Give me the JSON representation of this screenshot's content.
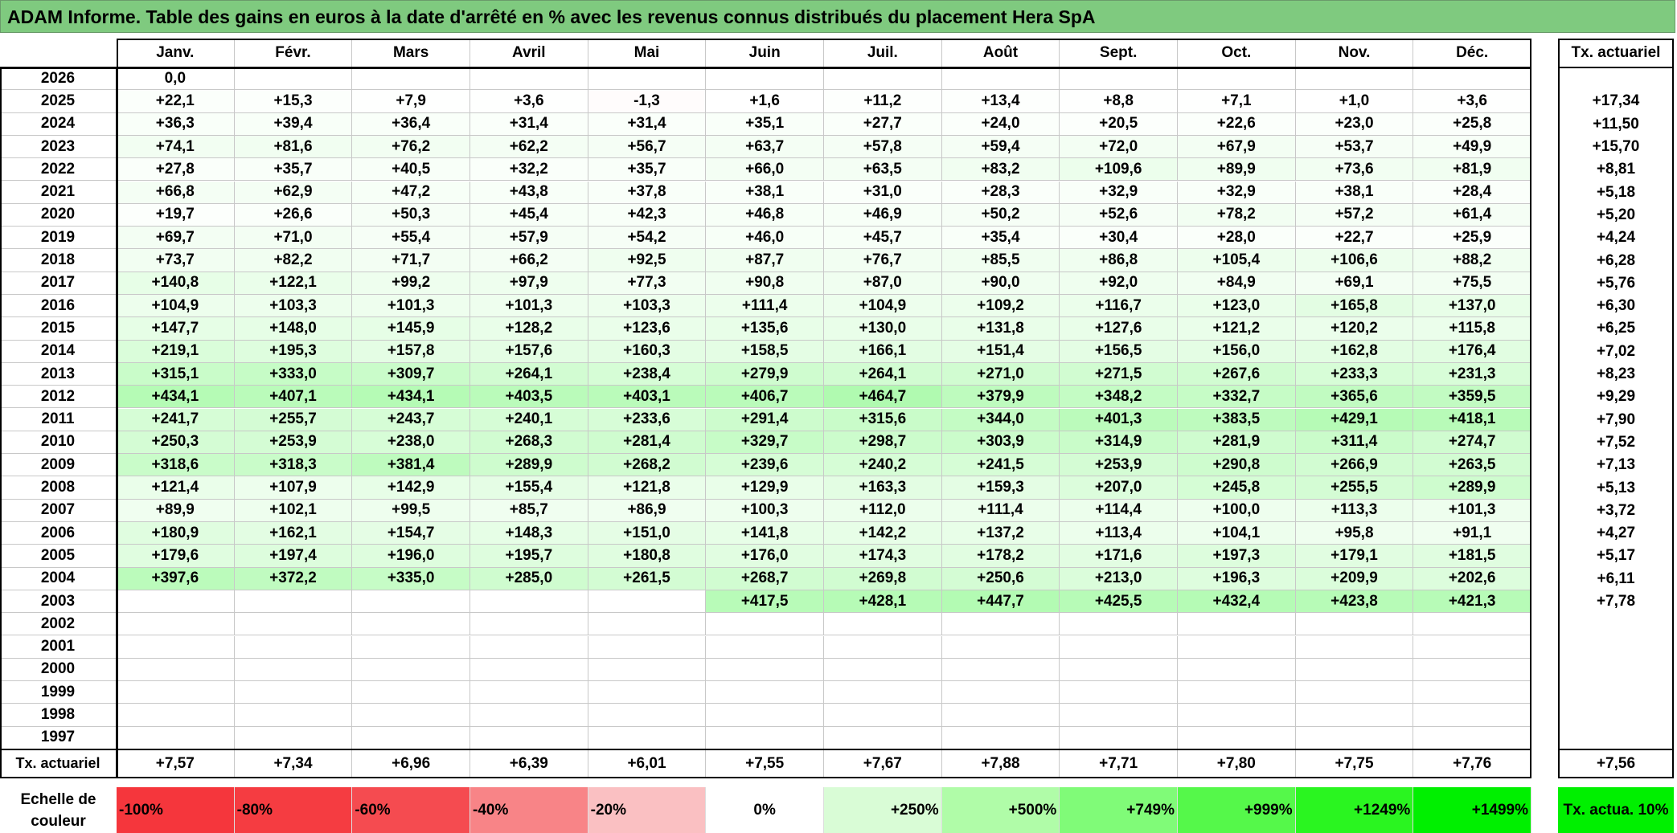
{
  "title": "ADAM Informe. Table des gains en euros à la date d'arrêté en % avec les revenus connus distribués du placement Hera SpA",
  "months": [
    "Janv.",
    "Févr.",
    "Mars",
    "Avril",
    "Mai",
    "Juin",
    "Juil.",
    "Août",
    "Sept.",
    "Oct.",
    "Nov.",
    "Déc."
  ],
  "rate_header": "Tx. actuariel",
  "rows": [
    {
      "year": "2026",
      "values": [
        "0,0",
        "",
        "",
        "",
        "",
        "",
        "",
        "",
        "",
        "",
        "",
        ""
      ],
      "rate": ""
    },
    {
      "year": "2025",
      "values": [
        "+22,1",
        "+15,3",
        "+7,9",
        "+3,6",
        "-1,3",
        "+1,6",
        "+11,2",
        "+13,4",
        "+8,8",
        "+7,1",
        "+1,0",
        "+3,6"
      ],
      "rate": "+17,34"
    },
    {
      "year": "2024",
      "values": [
        "+36,3",
        "+39,4",
        "+36,4",
        "+31,4",
        "+31,4",
        "+35,1",
        "+27,7",
        "+24,0",
        "+20,5",
        "+22,6",
        "+23,0",
        "+25,8"
      ],
      "rate": "+11,50"
    },
    {
      "year": "2023",
      "values": [
        "+74,1",
        "+81,6",
        "+76,2",
        "+62,2",
        "+56,7",
        "+63,7",
        "+57,8",
        "+59,4",
        "+72,0",
        "+67,9",
        "+53,7",
        "+49,9"
      ],
      "rate": "+15,70"
    },
    {
      "year": "2022",
      "values": [
        "+27,8",
        "+35,7",
        "+40,5",
        "+32,2",
        "+35,7",
        "+66,0",
        "+63,5",
        "+83,2",
        "+109,6",
        "+89,9",
        "+73,6",
        "+81,9"
      ],
      "rate": "+8,81"
    },
    {
      "year": "2021",
      "values": [
        "+66,8",
        "+62,9",
        "+47,2",
        "+43,8",
        "+37,8",
        "+38,1",
        "+31,0",
        "+28,3",
        "+32,9",
        "+32,9",
        "+38,1",
        "+28,4"
      ],
      "rate": "+5,18"
    },
    {
      "year": "2020",
      "values": [
        "+19,7",
        "+26,6",
        "+50,3",
        "+45,4",
        "+42,3",
        "+46,8",
        "+46,9",
        "+50,2",
        "+52,6",
        "+78,2",
        "+57,2",
        "+61,4"
      ],
      "rate": "+5,20"
    },
    {
      "year": "2019",
      "values": [
        "+69,7",
        "+71,0",
        "+55,4",
        "+57,9",
        "+54,2",
        "+46,0",
        "+45,7",
        "+35,4",
        "+30,4",
        "+28,0",
        "+22,7",
        "+25,9"
      ],
      "rate": "+4,24"
    },
    {
      "year": "2018",
      "values": [
        "+73,7",
        "+82,2",
        "+71,7",
        "+66,2",
        "+92,5",
        "+87,7",
        "+76,7",
        "+85,5",
        "+86,8",
        "+105,4",
        "+106,6",
        "+88,2"
      ],
      "rate": "+6,28"
    },
    {
      "year": "2017",
      "values": [
        "+140,8",
        "+122,1",
        "+99,2",
        "+97,9",
        "+77,3",
        "+90,8",
        "+87,0",
        "+90,0",
        "+92,0",
        "+84,9",
        "+69,1",
        "+75,5"
      ],
      "rate": "+5,76"
    },
    {
      "year": "2016",
      "values": [
        "+104,9",
        "+103,3",
        "+101,3",
        "+101,3",
        "+103,3",
        "+111,4",
        "+104,9",
        "+109,2",
        "+116,7",
        "+123,0",
        "+165,8",
        "+137,0"
      ],
      "rate": "+6,30"
    },
    {
      "year": "2015",
      "values": [
        "+147,7",
        "+148,0",
        "+145,9",
        "+128,2",
        "+123,6",
        "+135,6",
        "+130,0",
        "+131,8",
        "+127,6",
        "+121,2",
        "+120,2",
        "+115,8"
      ],
      "rate": "+6,25"
    },
    {
      "year": "2014",
      "values": [
        "+219,1",
        "+195,3",
        "+157,8",
        "+157,6",
        "+160,3",
        "+158,5",
        "+166,1",
        "+151,4",
        "+156,5",
        "+156,0",
        "+162,8",
        "+176,4"
      ],
      "rate": "+7,02"
    },
    {
      "year": "2013",
      "values": [
        "+315,1",
        "+333,0",
        "+309,7",
        "+264,1",
        "+238,4",
        "+279,9",
        "+264,1",
        "+271,0",
        "+271,5",
        "+267,6",
        "+233,3",
        "+231,3"
      ],
      "rate": "+8,23"
    },
    {
      "year": "2012",
      "values": [
        "+434,1",
        "+407,1",
        "+434,1",
        "+403,5",
        "+403,1",
        "+406,7",
        "+464,7",
        "+379,9",
        "+348,2",
        "+332,7",
        "+365,6",
        "+359,5"
      ],
      "rate": "+9,29"
    },
    {
      "year": "2011",
      "values": [
        "+241,7",
        "+255,7",
        "+243,7",
        "+240,1",
        "+233,6",
        "+291,4",
        "+315,6",
        "+344,0",
        "+401,3",
        "+383,5",
        "+429,1",
        "+418,1"
      ],
      "rate": "+7,90"
    },
    {
      "year": "2010",
      "values": [
        "+250,3",
        "+253,9",
        "+238,0",
        "+268,3",
        "+281,4",
        "+329,7",
        "+298,7",
        "+303,9",
        "+314,9",
        "+281,9",
        "+311,4",
        "+274,7"
      ],
      "rate": "+7,52"
    },
    {
      "year": "2009",
      "values": [
        "+318,6",
        "+318,3",
        "+381,4",
        "+289,9",
        "+268,2",
        "+239,6",
        "+240,2",
        "+241,5",
        "+253,9",
        "+290,8",
        "+266,9",
        "+263,5"
      ],
      "rate": "+7,13"
    },
    {
      "year": "2008",
      "values": [
        "+121,4",
        "+107,9",
        "+142,9",
        "+155,4",
        "+121,8",
        "+129,9",
        "+163,3",
        "+159,3",
        "+207,0",
        "+245,8",
        "+255,5",
        "+289,9"
      ],
      "rate": "+5,13"
    },
    {
      "year": "2007",
      "values": [
        "+89,9",
        "+102,1",
        "+99,5",
        "+85,7",
        "+86,9",
        "+100,3",
        "+112,0",
        "+111,4",
        "+114,4",
        "+100,0",
        "+113,3",
        "+101,3"
      ],
      "rate": "+3,72"
    },
    {
      "year": "2006",
      "values": [
        "+180,9",
        "+162,1",
        "+154,7",
        "+148,3",
        "+151,0",
        "+141,8",
        "+142,2",
        "+137,2",
        "+113,4",
        "+104,1",
        "+95,8",
        "+91,1"
      ],
      "rate": "+4,27"
    },
    {
      "year": "2005",
      "values": [
        "+179,6",
        "+197,4",
        "+196,0",
        "+195,7",
        "+180,8",
        "+176,0",
        "+174,3",
        "+178,2",
        "+171,6",
        "+197,3",
        "+179,1",
        "+181,5"
      ],
      "rate": "+5,17"
    },
    {
      "year": "2004",
      "values": [
        "+397,6",
        "+372,2",
        "+335,0",
        "+285,0",
        "+261,5",
        "+268,7",
        "+269,8",
        "+250,6",
        "+213,0",
        "+196,3",
        "+209,9",
        "+202,6"
      ],
      "rate": "+6,11"
    },
    {
      "year": "2003",
      "values": [
        "",
        "",
        "",
        "",
        "",
        "+417,5",
        "+428,1",
        "+447,7",
        "+425,5",
        "+432,4",
        "+423,8",
        "+421,3"
      ],
      "rate": "+7,78"
    },
    {
      "year": "2002",
      "values": [
        "",
        "",
        "",
        "",
        "",
        "",
        "",
        "",
        "",
        "",
        "",
        ""
      ],
      "rate": ""
    },
    {
      "year": "2001",
      "values": [
        "",
        "",
        "",
        "",
        "",
        "",
        "",
        "",
        "",
        "",
        "",
        ""
      ],
      "rate": ""
    },
    {
      "year": "2000",
      "values": [
        "",
        "",
        "",
        "",
        "",
        "",
        "",
        "",
        "",
        "",
        "",
        ""
      ],
      "rate": ""
    },
    {
      "year": "1999",
      "values": [
        "",
        "",
        "",
        "",
        "",
        "",
        "",
        "",
        "",
        "",
        "",
        ""
      ],
      "rate": ""
    },
    {
      "year": "1998",
      "values": [
        "",
        "",
        "",
        "",
        "",
        "",
        "",
        "",
        "",
        "",
        "",
        ""
      ],
      "rate": ""
    },
    {
      "year": "1997",
      "values": [
        "",
        "",
        "",
        "",
        "",
        "",
        "",
        "",
        "",
        "",
        "",
        ""
      ],
      "rate": ""
    }
  ],
  "footer": {
    "label": "Tx. actuariel",
    "values": [
      "+7,57",
      "+7,34",
      "+6,96",
      "+6,39",
      "+6,01",
      "+7,55",
      "+7,67",
      "+7,88",
      "+7,71",
      "+7,80",
      "+7,75",
      "+7,76"
    ],
    "rate": "+7,56"
  },
  "legend": {
    "label": "Echelle de couleur",
    "items": [
      {
        "label": "-100%",
        "color": "#f5363c"
      },
      {
        "label": "-80%",
        "color": "#f53c41"
      },
      {
        "label": "-60%",
        "color": "#f54b50"
      },
      {
        "label": "-40%",
        "color": "#f88487"
      },
      {
        "label": "-20%",
        "color": "#fac0c2"
      },
      {
        "label": "0%",
        "color": "#ffffff"
      },
      {
        "label": "+250%",
        "color": "#d9fcd6"
      },
      {
        "label": "+500%",
        "color": "#b0fca8"
      },
      {
        "label": "+749%",
        "color": "#80fb78"
      },
      {
        "label": "+999%",
        "color": "#55f84a"
      },
      {
        "label": "+1249%",
        "color": "#2af520"
      },
      {
        "label": "+1499%",
        "color": "#00f000"
      }
    ],
    "rate_label": "Tx. actua. 10%",
    "rate_color": "#00f000"
  },
  "colors": {
    "title_bg": "#7fca7f",
    "positive_max": "#00f000",
    "negative_max": "#f5363c"
  }
}
